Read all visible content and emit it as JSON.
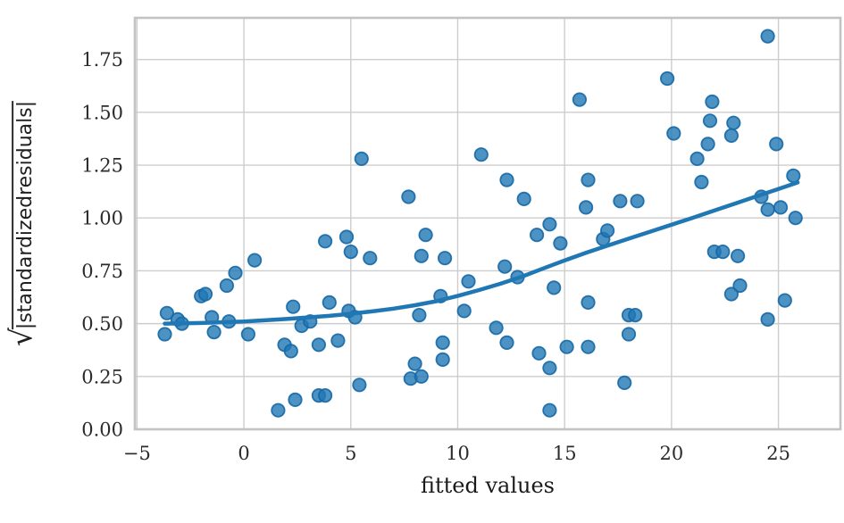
{
  "figure": {
    "ylabel_radical": "√",
    "ylabel_text": "|standardizedresiduals|"
  },
  "chart_data": {
    "type": "scatter",
    "title": "",
    "xlabel": "fitted values",
    "ylabel": "√|standardizedresiduals|",
    "xlim": [
      -5.1,
      27.9
    ],
    "ylim": [
      0,
      1.947
    ],
    "grid": true,
    "legend": "none",
    "colors": {
      "point_fill": "#1f77b4",
      "point_edge": "#1668a5",
      "trend_line": "#1f77b4",
      "gridline": "#cdcdcd",
      "spine": "#c3c3c3",
      "tick_text": "#2b2b2b"
    },
    "x_ticks": [
      {
        "value": -5,
        "label": "−5"
      },
      {
        "value": 0,
        "label": "0"
      },
      {
        "value": 5,
        "label": "5"
      },
      {
        "value": 10,
        "label": "10"
      },
      {
        "value": 15,
        "label": "15"
      },
      {
        "value": 20,
        "label": "20"
      },
      {
        "value": 25,
        "label": "25"
      }
    ],
    "y_ticks": [
      {
        "value": 0.0,
        "label": "0.00"
      },
      {
        "value": 0.25,
        "label": "0.25"
      },
      {
        "value": 0.5,
        "label": "0.50"
      },
      {
        "value": 0.75,
        "label": "0.75"
      },
      {
        "value": 1.0,
        "label": "1.00"
      },
      {
        "value": 1.25,
        "label": "1.25"
      },
      {
        "value": 1.5,
        "label": "1.50"
      },
      {
        "value": 1.75,
        "label": "1.75"
      }
    ],
    "series": [
      {
        "name": "standardized-residual-points",
        "kind": "scatter",
        "points": [
          [
            -3.6,
            0.55
          ],
          [
            -3.7,
            0.45
          ],
          [
            -3.1,
            0.52
          ],
          [
            -2.9,
            0.5
          ],
          [
            -2.0,
            0.63
          ],
          [
            -1.8,
            0.64
          ],
          [
            -1.5,
            0.53
          ],
          [
            -1.4,
            0.46
          ],
          [
            -0.8,
            0.68
          ],
          [
            -0.7,
            0.51
          ],
          [
            -0.4,
            0.74
          ],
          [
            0.2,
            0.45
          ],
          [
            0.5,
            0.8
          ],
          [
            1.6,
            0.09
          ],
          [
            1.9,
            0.4
          ],
          [
            2.2,
            0.37
          ],
          [
            2.4,
            0.14
          ],
          [
            2.3,
            0.58
          ],
          [
            2.7,
            0.49
          ],
          [
            3.1,
            0.51
          ],
          [
            3.5,
            0.16
          ],
          [
            3.8,
            0.16
          ],
          [
            3.5,
            0.4
          ],
          [
            4.4,
            0.42
          ],
          [
            4.0,
            0.6
          ],
          [
            3.8,
            0.89
          ],
          [
            4.8,
            0.91
          ],
          [
            5.0,
            0.84
          ],
          [
            4.9,
            0.56
          ],
          [
            5.2,
            0.53
          ],
          [
            5.4,
            0.21
          ],
          [
            5.5,
            1.28
          ],
          [
            5.9,
            0.81
          ],
          [
            7.7,
            1.1
          ],
          [
            7.8,
            0.24
          ],
          [
            8.0,
            0.31
          ],
          [
            8.3,
            0.25
          ],
          [
            8.2,
            0.54
          ],
          [
            8.3,
            0.82
          ],
          [
            8.5,
            0.92
          ],
          [
            9.2,
            0.63
          ],
          [
            9.3,
            0.41
          ],
          [
            9.3,
            0.33
          ],
          [
            9.4,
            0.81
          ],
          [
            10.3,
            0.56
          ],
          [
            10.5,
            0.7
          ],
          [
            11.1,
            1.3
          ],
          [
            11.8,
            0.48
          ],
          [
            12.2,
            0.77
          ],
          [
            12.3,
            1.18
          ],
          [
            12.3,
            0.41
          ],
          [
            12.8,
            0.72
          ],
          [
            13.1,
            1.09
          ],
          [
            13.7,
            0.92
          ],
          [
            13.8,
            0.36
          ],
          [
            14.3,
            0.97
          ],
          [
            14.3,
            0.29
          ],
          [
            14.3,
            0.09
          ],
          [
            14.5,
            0.67
          ],
          [
            14.8,
            0.88
          ],
          [
            15.1,
            0.39
          ],
          [
            15.7,
            1.56
          ],
          [
            16.0,
            1.05
          ],
          [
            16.1,
            1.18
          ],
          [
            16.1,
            0.6
          ],
          [
            16.1,
            0.39
          ],
          [
            16.8,
            0.9
          ],
          [
            17.0,
            0.94
          ],
          [
            17.6,
            1.08
          ],
          [
            17.8,
            0.22
          ],
          [
            18.0,
            0.54
          ],
          [
            18.3,
            0.54
          ],
          [
            18.0,
            0.45
          ],
          [
            18.4,
            1.08
          ],
          [
            19.8,
            1.66
          ],
          [
            20.1,
            1.4
          ],
          [
            21.2,
            1.28
          ],
          [
            21.4,
            1.17
          ],
          [
            21.7,
            1.35
          ],
          [
            21.8,
            1.46
          ],
          [
            21.9,
            1.55
          ],
          [
            22.0,
            0.84
          ],
          [
            22.4,
            0.84
          ],
          [
            22.8,
            1.39
          ],
          [
            22.8,
            0.64
          ],
          [
            22.9,
            1.45
          ],
          [
            23.1,
            0.82
          ],
          [
            23.2,
            0.68
          ],
          [
            24.2,
            1.1
          ],
          [
            24.5,
            1.86
          ],
          [
            24.5,
            1.04
          ],
          [
            24.5,
            0.52
          ],
          [
            24.9,
            1.35
          ],
          [
            25.1,
            1.05
          ],
          [
            25.3,
            0.61
          ],
          [
            25.7,
            1.2
          ],
          [
            25.8,
            1.0
          ]
        ]
      },
      {
        "name": "lowess-trend",
        "kind": "line",
        "points": [
          [
            -3.7,
            0.5
          ],
          [
            -2,
            0.503
          ],
          [
            0,
            0.51
          ],
          [
            2,
            0.522
          ],
          [
            4,
            0.537
          ],
          [
            5,
            0.547
          ],
          [
            6,
            0.558
          ],
          [
            7,
            0.571
          ],
          [
            8,
            0.587
          ],
          [
            9,
            0.606
          ],
          [
            10,
            0.631
          ],
          [
            11,
            0.659
          ],
          [
            12,
            0.689
          ],
          [
            13,
            0.722
          ],
          [
            14,
            0.761
          ],
          [
            15,
            0.799
          ],
          [
            16,
            0.835
          ],
          [
            17,
            0.869
          ],
          [
            18,
            0.902
          ],
          [
            19,
            0.935
          ],
          [
            20,
            0.968
          ],
          [
            21,
            1.001
          ],
          [
            22,
            1.035
          ],
          [
            23,
            1.069
          ],
          [
            24,
            1.103
          ],
          [
            25,
            1.137
          ],
          [
            25.9,
            1.168
          ]
        ]
      }
    ]
  }
}
